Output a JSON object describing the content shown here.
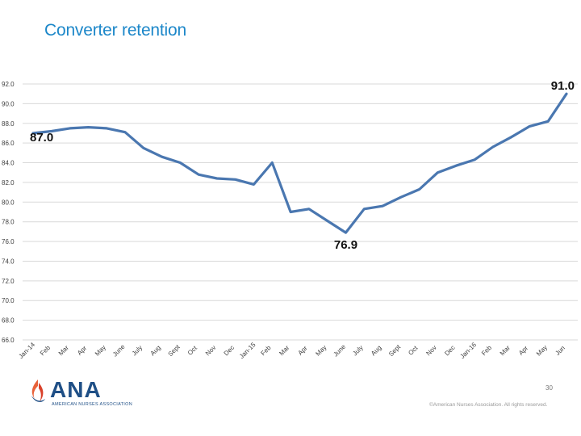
{
  "slide": {
    "title": "Converter retention",
    "page_number": "30",
    "copyright": "©American Nurses Association. All rights reserved."
  },
  "logo": {
    "wordmark": "ANA",
    "subtitle": "AMERICAN NURSES ASSOCIATION",
    "colors": {
      "blue": "#1f4f86",
      "orange": "#e8623a",
      "red": "#d9412b"
    }
  },
  "chart_data": {
    "type": "line",
    "title": "",
    "xlabel": "",
    "ylabel": "",
    "ylim": [
      66,
      92
    ],
    "grid": true,
    "legend": "none",
    "line_color": "#4a77b0",
    "categories": [
      "Jan-14",
      "Feb",
      "Mar",
      "Apr",
      "May",
      "June",
      "July",
      "Aug",
      "Sept",
      "Oct",
      "Nov",
      "Dec",
      "Jan-15",
      "Feb",
      "Mar",
      "Apr",
      "May",
      "June",
      "July",
      "Aug",
      "Sept",
      "Oct",
      "Nov",
      "Dec",
      "Jan-16",
      "Feb",
      "Mar",
      "Apr",
      "May",
      "Jun"
    ],
    "y_ticks": [
      "66.0",
      "68.0",
      "70.0",
      "72.0",
      "74.0",
      "76.0",
      "78.0",
      "80.0",
      "82.0",
      "84.0",
      "86.0",
      "88.0",
      "90.0",
      "92.0"
    ],
    "series": [
      {
        "values": [
          87.0,
          87.2,
          87.5,
          87.6,
          87.5,
          87.1,
          85.5,
          84.6,
          84.0,
          82.8,
          82.4,
          82.3,
          81.8,
          84.0,
          79.0,
          79.3,
          78.1,
          76.9,
          79.3,
          79.6,
          80.5,
          81.3,
          83.0,
          83.7,
          84.3,
          85.6,
          86.6,
          87.7,
          88.2,
          91.0
        ]
      }
    ],
    "annotations": [
      {
        "label": "87.0",
        "index": 0
      },
      {
        "label": "76.9",
        "index": 17
      },
      {
        "label": "91.0",
        "index": 29
      }
    ]
  }
}
